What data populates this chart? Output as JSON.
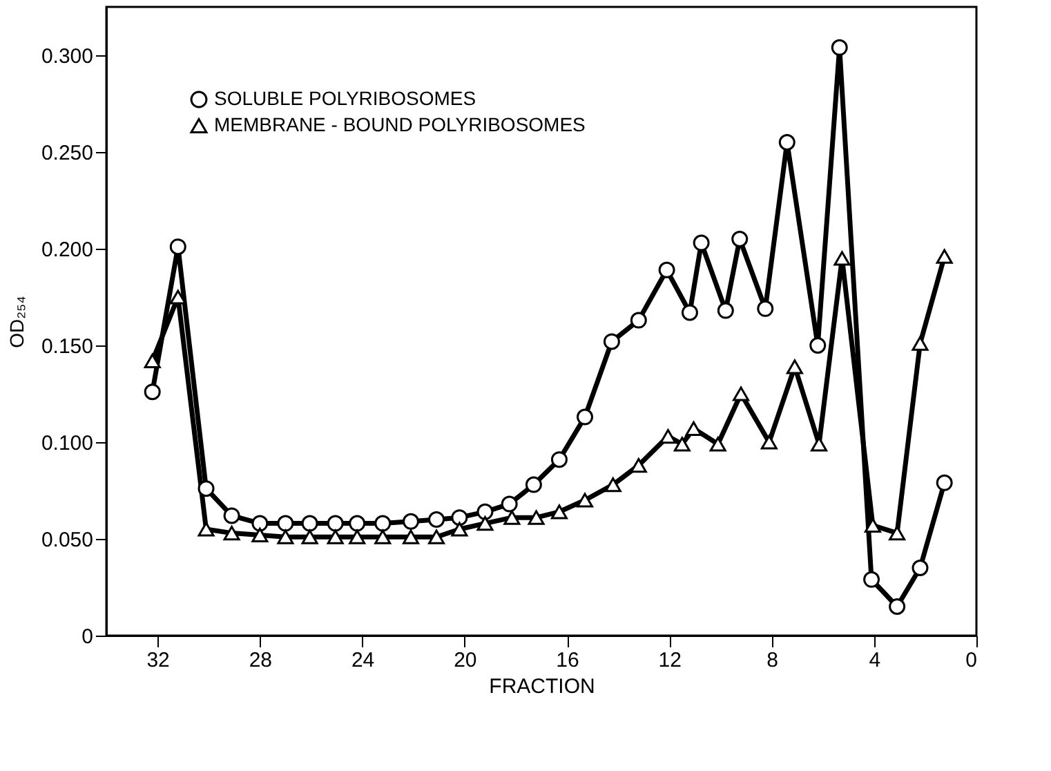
{
  "chart_data": {
    "type": "line",
    "xlabel": "FRACTION",
    "ylabel": "OD₂₅₄",
    "xlim": [
      34,
      0
    ],
    "xticks": [
      32,
      28,
      24,
      20,
      16,
      12,
      8,
      4,
      0
    ],
    "ylim": [
      0,
      0.325
    ],
    "yticks": [
      {
        "value": 0,
        "label": "0"
      },
      {
        "value": 0.05,
        "label": "0.050"
      },
      {
        "value": 0.1,
        "label": "0.100"
      },
      {
        "value": 0.15,
        "label": "0.150"
      },
      {
        "value": 0.2,
        "label": "0.200"
      },
      {
        "value": 0.25,
        "label": "0.250"
      },
      {
        "value": 0.3,
        "label": "0.300"
      }
    ],
    "grid": false,
    "legend": "top left",
    "line_style": "solid",
    "series": [
      {
        "name": "SOLUBLE POLYRIBOSOMES",
        "color": "#000000",
        "marker": "circle",
        "x": [
          32.2,
          31.2,
          30.1,
          29.1,
          28,
          27,
          26.05,
          25.05,
          24.2,
          23.2,
          22.1,
          21.1,
          20.2,
          19.2,
          18.25,
          17.3,
          16.3,
          15.3,
          14.25,
          13.2,
          12.1,
          11.2,
          10.75,
          9.8,
          9.25,
          8.25,
          7.4,
          6.2,
          5.35,
          4.1,
          3.1,
          2.2,
          1.25
        ],
        "values": [
          0.126,
          0.201,
          0.076,
          0.062,
          0.058,
          0.058,
          0.058,
          0.058,
          0.058,
          0.058,
          0.059,
          0.06,
          0.061,
          0.064,
          0.068,
          0.078,
          0.091,
          0.113,
          0.152,
          0.163,
          0.189,
          0.167,
          0.203,
          0.168,
          0.205,
          0.169,
          0.255,
          0.15,
          0.304,
          0.029,
          0.015,
          0.035,
          0.079
        ]
      },
      {
        "name": "MEMBRANE - BOUND POLYRIBOSOMES",
        "color": "#000000",
        "marker": "triangle",
        "x": [
          32.2,
          31.2,
          30.1,
          29.1,
          28,
          27,
          26.05,
          25.05,
          24.2,
          23.2,
          22.1,
          21.1,
          20.2,
          19.2,
          18.15,
          17.2,
          16.3,
          15.3,
          14.2,
          13.2,
          12.05,
          11.5,
          11.05,
          10.1,
          9.2,
          8.1,
          7.1,
          6.15,
          5.25,
          4.05,
          3.1,
          2.2,
          1.25
        ],
        "values": [
          0.142,
          0.175,
          0.055,
          0.053,
          0.052,
          0.051,
          0.051,
          0.051,
          0.051,
          0.051,
          0.051,
          0.051,
          0.055,
          0.058,
          0.061,
          0.061,
          0.064,
          0.07,
          0.078,
          0.088,
          0.103,
          0.099,
          0.107,
          0.099,
          0.125,
          0.1,
          0.139,
          0.099,
          0.195,
          0.057,
          0.053,
          0.151,
          0.196
        ]
      }
    ]
  }
}
